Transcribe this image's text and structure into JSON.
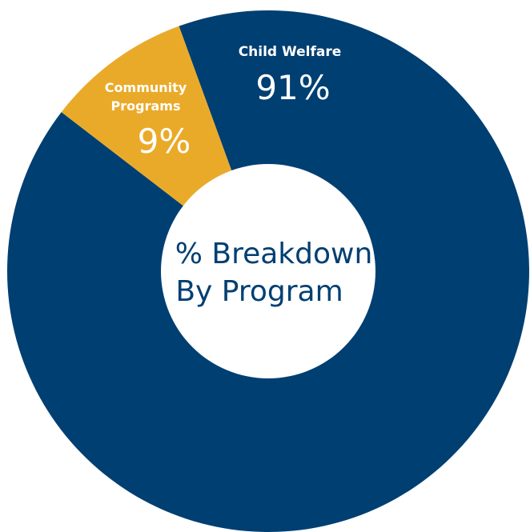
{
  "chart_data": {
    "type": "pie",
    "variant": "donut",
    "title": "% Breakdown By Program",
    "title_lines": [
      "% Breakdown",
      "By Program"
    ],
    "start_angle_deg": -20,
    "slices": [
      {
        "label_lines": [
          "Child Welfare"
        ],
        "value": 91,
        "value_label": "91%",
        "color": "#003f72"
      },
      {
        "label_lines": [
          "Community",
          "Programs"
        ],
        "value": 9,
        "value_label": "9%",
        "color": "#eaaa29"
      }
    ]
  }
}
